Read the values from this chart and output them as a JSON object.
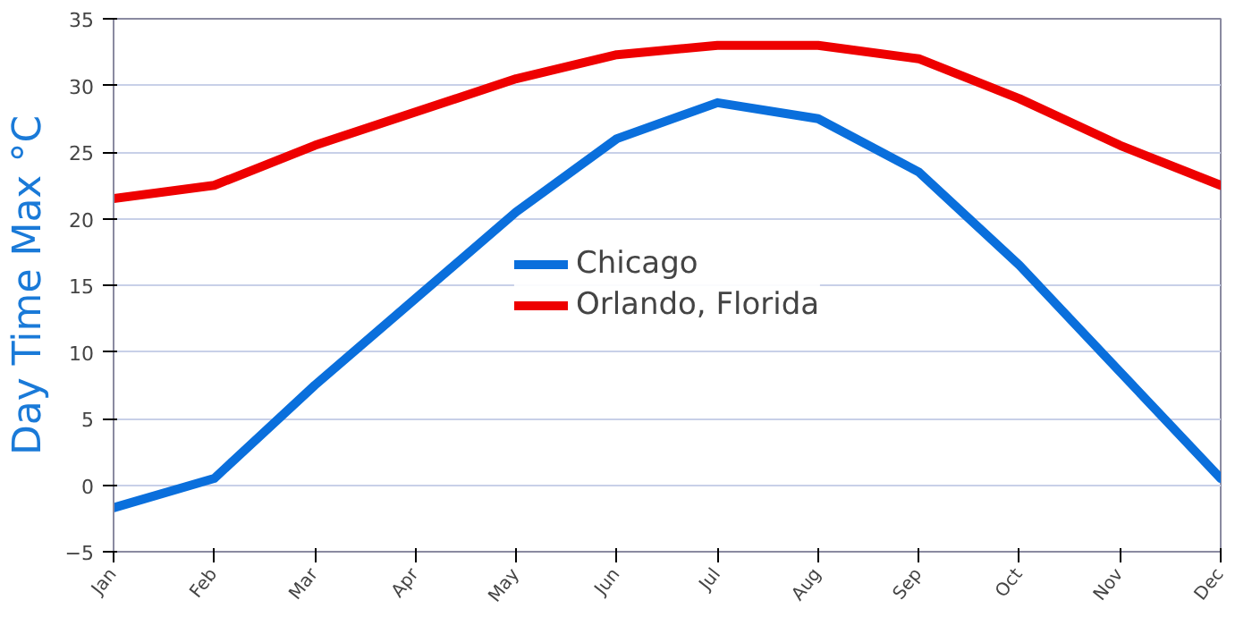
{
  "chart_data": {
    "type": "line",
    "ylabel": "Day Time Max °C",
    "categories": [
      "Jan",
      "Feb",
      "Mar",
      "Apr",
      "May",
      "Jun",
      "Jul",
      "Aug",
      "Sep",
      "Oct",
      "Nov",
      "Dec"
    ],
    "series": [
      {
        "name": "Chicago",
        "color": "#0a6fdc",
        "values": [
          -1.7,
          0.5,
          7.5,
          14,
          20.5,
          26,
          28.7,
          27.5,
          23.5,
          16.5,
          8.5,
          0.5
        ]
      },
      {
        "name": "Orlando, Florida",
        "color": "#ee0000",
        "values": [
          21.5,
          22.5,
          25.5,
          28,
          30.5,
          32.3,
          33,
          33,
          32,
          29,
          25.5,
          22.5
        ]
      }
    ],
    "ylim": [
      -5,
      35
    ],
    "yticks": [
      -5,
      0,
      5,
      10,
      15,
      20,
      25,
      30,
      35
    ],
    "grid": "y",
    "legend": "center",
    "line_style": "solid",
    "marker": "none"
  }
}
